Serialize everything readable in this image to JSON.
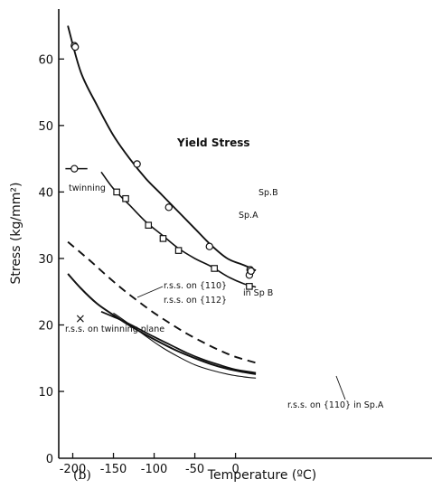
{
  "chart_data": {
    "type": "line",
    "panel_label": "(b)",
    "xlabel": "Temperature (ºC)",
    "ylabel": "Stress (kg/mm²)",
    "xlim": [
      -210,
      25
    ],
    "ylim": [
      0,
      70
    ],
    "xticks": [
      -200,
      -150,
      -100,
      -50,
      0
    ],
    "yticks": [
      10,
      20,
      30,
      40,
      50,
      60
    ],
    "grid": false,
    "series": [
      {
        "key": "spB",
        "name": "Sp.B",
        "style": "solid",
        "marker": "circle",
        "curve": [
          [
            -206,
            65
          ],
          [
            -190,
            58
          ],
          [
            -170,
            53
          ],
          [
            -150,
            48.5
          ],
          [
            -130,
            45
          ],
          [
            -110,
            42
          ],
          [
            -90,
            39.5
          ],
          [
            -70,
            37
          ],
          [
            -50,
            34.5
          ],
          [
            -30,
            32
          ],
          [
            -10,
            30
          ],
          [
            10,
            29
          ],
          [
            25,
            28.2
          ]
        ],
        "points": [
          [
            -198,
            62
          ],
          [
            -197,
            61.8
          ],
          [
            -121,
            44.2
          ],
          [
            -82,
            37.7
          ],
          [
            -32,
            31.8
          ],
          [
            17,
            27.5
          ],
          [
            18,
            28.3
          ],
          [
            19,
            28.1
          ]
        ]
      },
      {
        "key": "spA",
        "name": "Sp.A",
        "style": "solid",
        "marker": "square",
        "curve": [
          [
            -165,
            43
          ],
          [
            -150,
            40.5
          ],
          [
            -130,
            38
          ],
          [
            -110,
            35.5
          ],
          [
            -90,
            33.5
          ],
          [
            -70,
            31.5
          ],
          [
            -50,
            30
          ],
          [
            -30,
            28.8
          ],
          [
            -10,
            27.3
          ],
          [
            10,
            26.2
          ],
          [
            25,
            25.7
          ]
        ],
        "points": [
          [
            -146,
            40
          ],
          [
            -135,
            39
          ],
          [
            -107,
            35
          ],
          [
            -89,
            33
          ],
          [
            -70,
            31.2
          ],
          [
            -26,
            28.5
          ],
          [
            17,
            25.8
          ]
        ]
      },
      {
        "key": "rss112B",
        "name": "r.s.s. on {112} in Sp.B",
        "style": "dashed",
        "curve": [
          [
            -206,
            32.5
          ],
          [
            -180,
            29.8
          ],
          [
            -160,
            27.6
          ],
          [
            -140,
            25.5
          ],
          [
            -120,
            23.6
          ],
          [
            -100,
            21.8
          ],
          [
            -80,
            20.2
          ],
          [
            -60,
            18.7
          ],
          [
            -40,
            17.4
          ],
          [
            -20,
            16.2
          ],
          [
            0,
            15.2
          ],
          [
            25,
            14.3
          ]
        ]
      },
      {
        "key": "rss110B",
        "name": "r.s.s. on {110} in Sp.B",
        "style": "solid",
        "curve": [
          [
            -165,
            22
          ],
          [
            -140,
            20.7
          ],
          [
            -120,
            19.5
          ],
          [
            -100,
            18.2
          ],
          [
            -80,
            17
          ],
          [
            -60,
            15.8
          ],
          [
            -40,
            14.8
          ],
          [
            -20,
            14
          ],
          [
            0,
            13.3
          ],
          [
            25,
            12.8
          ]
        ]
      },
      {
        "key": "rssTwin",
        "name": "r.s.s. on twinning plane",
        "style": "solid",
        "curve": [
          [
            -206,
            27.7
          ],
          [
            -190,
            25.5
          ],
          [
            -170,
            23.2
          ],
          [
            -150,
            21.5
          ],
          [
            -130,
            19.9
          ],
          [
            -110,
            18.5
          ],
          [
            -90,
            17.2
          ],
          [
            -70,
            16
          ],
          [
            -50,
            15
          ],
          [
            -30,
            14.1
          ],
          [
            -10,
            13.4
          ],
          [
            10,
            12.9
          ],
          [
            25,
            12.6
          ]
        ]
      },
      {
        "key": "rss110A",
        "name": "r.s.s. on {110} in Sp.A",
        "style": "solid",
        "curve": [
          [
            -150,
            21.8
          ],
          [
            -130,
            20.1
          ],
          [
            -110,
            18.3
          ],
          [
            -90,
            16.6
          ],
          [
            -70,
            15.2
          ],
          [
            -50,
            14
          ],
          [
            -30,
            13.2
          ],
          [
            -10,
            12.6
          ],
          [
            10,
            12.2
          ],
          [
            25,
            12
          ]
        ]
      }
    ],
    "twinning_point": {
      "x": -198,
      "y": 43.5,
      "segment": [
        -209,
        -182
      ]
    },
    "cross_point": {
      "x": -198,
      "y": 18.2
    },
    "annotations": {
      "yield_stress": "Yield Stress",
      "sp_b": "Sp.B",
      "sp_a": "Sp.A",
      "twinning": "twinning",
      "rss_110_b_1": "r.s.s. on {110}",
      "rss_110_b_2": "r.s.s. on {112}",
      "in_sp_b": "in Sp B",
      "rss_twin": "r.s.s. on twinning plane",
      "rss_110_a": "r.s.s. on {110} in Sp.A",
      "cross_marker": "×"
    }
  }
}
